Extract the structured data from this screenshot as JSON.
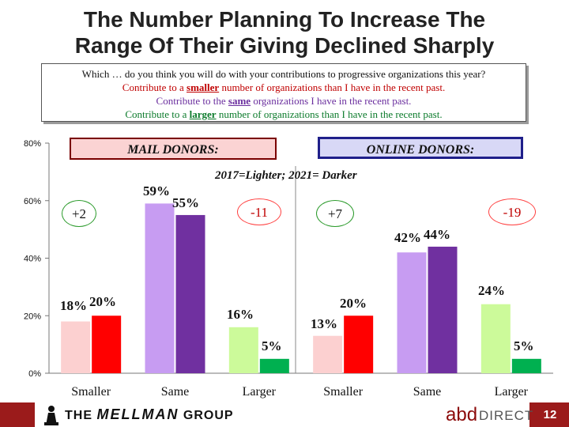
{
  "title_line1": "The Number Planning To Increase The",
  "title_line2": "Range Of Their Giving Declined Sharply",
  "question": {
    "prompt": "Which … do you think you will do with your contributions to progressive organizations this year?",
    "option1_pre": "Contribute to a ",
    "option1_kw": "smaller",
    "option1_post": " number of organizations than I have in the recent past.",
    "option2_pre": "Contribute to the ",
    "option2_kw": "same",
    "option2_post": " organizations I have in the recent past.",
    "option3_pre": "Contribute to a ",
    "option3_kw": "larger",
    "option3_post": " number of organizations than I have in the recent past."
  },
  "headers": {
    "mail": "MAIL DONORS:",
    "online": "ONLINE DONORS:"
  },
  "subtitle": "2017=Lighter; 2021= Darker",
  "differences": [
    "+2",
    "-11",
    "+7",
    "-19"
  ],
  "colors": {
    "smaller_2017": "#fcd0d0",
    "smaller_2021": "#ff0000",
    "same_2017": "#c79cf2",
    "same_2021": "#7030a0",
    "larger_2017": "#ccfa9a",
    "larger_2021": "#00b050"
  },
  "chart_data": {
    "type": "bar",
    "title": "The Number Planning To Increase The Range Of Their Giving Declined Sharply",
    "ylim": [
      0,
      80
    ],
    "yticks": [
      "0%",
      "20%",
      "40%",
      "60%",
      "80%"
    ],
    "groups": [
      "MAIL DONORS:",
      "ONLINE DONORS:"
    ],
    "categories": [
      "Smaller",
      "Same",
      "Larger",
      "Smaller",
      "Same",
      "Larger"
    ],
    "series": [
      {
        "name": "2017",
        "values": [
          18,
          59,
          16,
          13,
          42,
          24
        ],
        "labels": [
          "18%",
          "59%",
          "16%",
          "13%",
          "42%",
          "24%"
        ]
      },
      {
        "name": "2021",
        "values": [
          20,
          55,
          5,
          20,
          44,
          5
        ],
        "labels": [
          "20%",
          "55%",
          "5%",
          "20%",
          "44%",
          "5%"
        ]
      }
    ],
    "legend": "2017=Lighter; 2021= Darker"
  },
  "footer": {
    "firm_pre": "THE ",
    "firm_name": "MELLMAN",
    "firm_post": " GROUP",
    "abd": "abd",
    "direct": "DIRECT",
    "page": "12"
  }
}
